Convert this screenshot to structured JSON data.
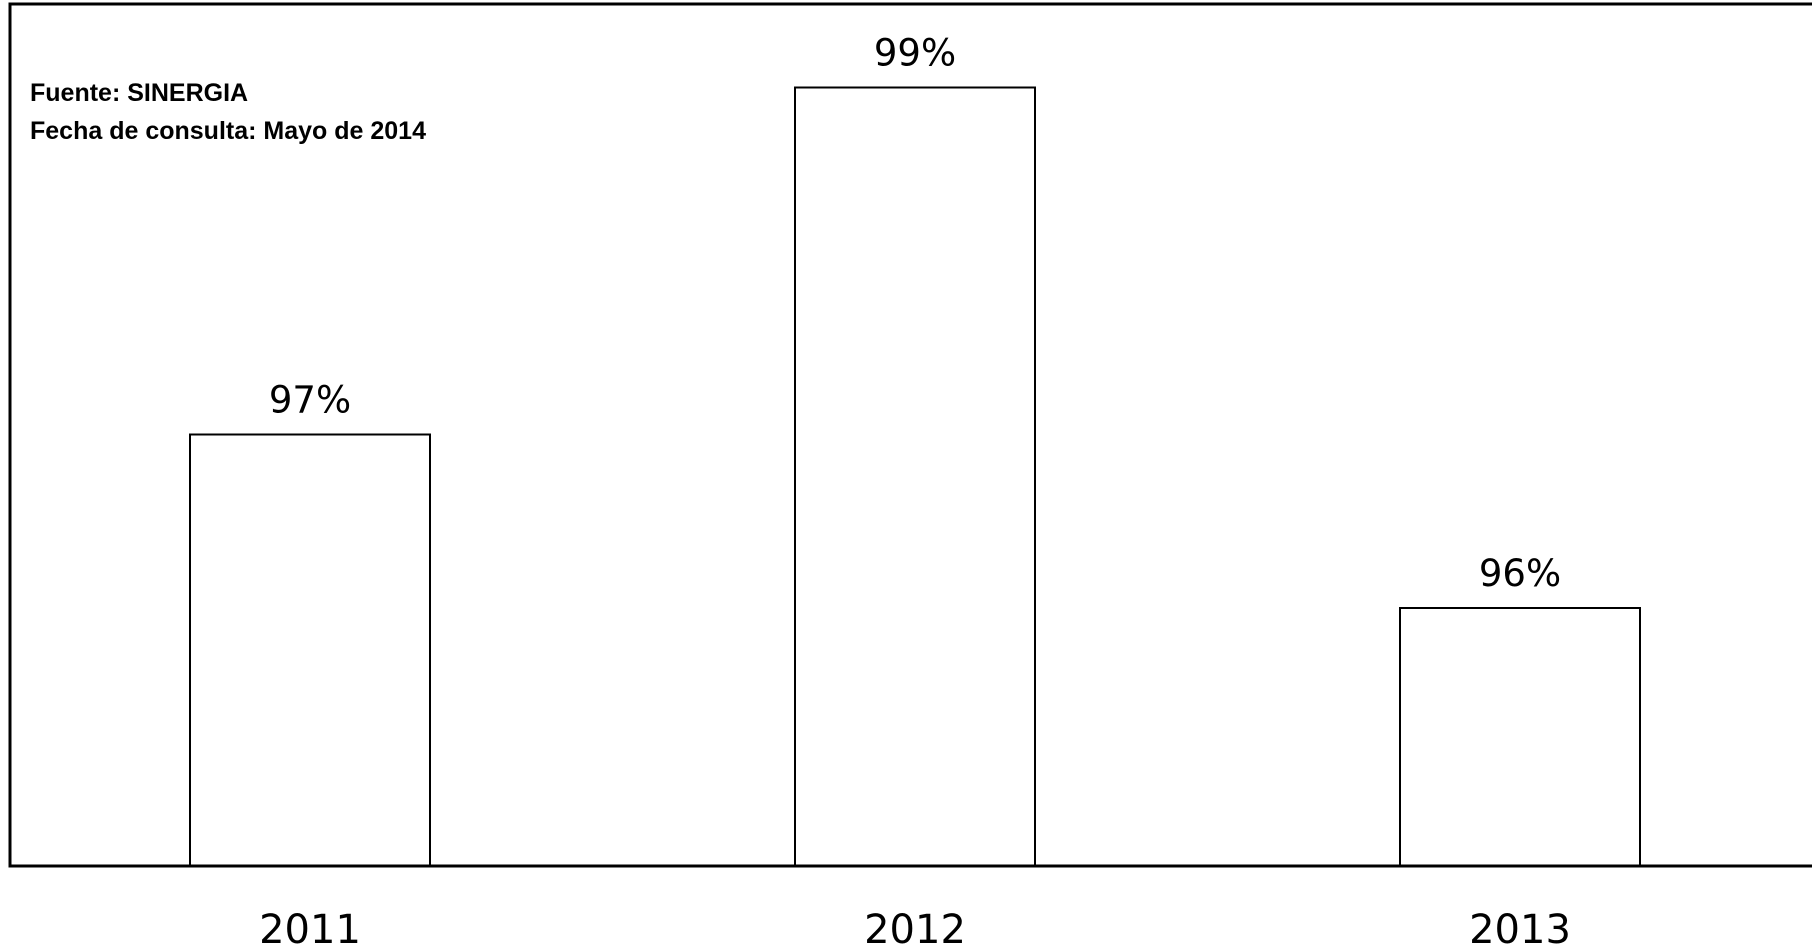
{
  "notes": {
    "source": "Fuente: SINERGIA",
    "date": "Fecha de consulta: Mayo de 2014"
  },
  "chart_data": {
    "type": "bar",
    "categories": [
      "2011",
      "2012",
      "2013"
    ],
    "values": [
      97,
      99,
      96
    ],
    "data_labels": [
      "97%",
      "99%",
      "96%"
    ],
    "title": "",
    "xlabel": "",
    "ylabel": "",
    "unit": "%",
    "y_axis_visible": false,
    "grid": false,
    "legend": "none",
    "colors": {
      "bar_fill": "#ffffff",
      "bar_stroke": "#000000",
      "frame": "#000000",
      "text": "#000000"
    }
  }
}
